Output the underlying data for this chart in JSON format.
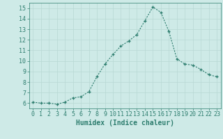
{
  "x": [
    0,
    1,
    2,
    3,
    4,
    5,
    6,
    7,
    8,
    9,
    10,
    11,
    12,
    13,
    14,
    15,
    16,
    17,
    18,
    19,
    20,
    21,
    22,
    23
  ],
  "y": [
    6.1,
    6.0,
    6.0,
    5.9,
    6.1,
    6.5,
    6.6,
    7.1,
    8.5,
    9.7,
    10.6,
    11.4,
    11.9,
    12.5,
    13.8,
    15.1,
    14.6,
    12.8,
    10.2,
    9.7,
    9.6,
    9.2,
    8.7,
    8.5
  ],
  "line_color": "#2d7d6e",
  "marker": "+",
  "marker_size": 3,
  "bg_color": "#ceeae7",
  "grid_color": "#b8d8d4",
  "tick_color": "#2d7d6e",
  "xlabel": "Humidex (Indice chaleur)",
  "xlabel_fontsize": 7,
  "xlabel_color": "#2d7d6e",
  "ylim": [
    5.5,
    15.5
  ],
  "xlim": [
    -0.5,
    23.5
  ],
  "yticks": [
    6,
    7,
    8,
    9,
    10,
    11,
    12,
    13,
    14,
    15
  ],
  "xticks": [
    0,
    1,
    2,
    3,
    4,
    5,
    6,
    7,
    8,
    9,
    10,
    11,
    12,
    13,
    14,
    15,
    16,
    17,
    18,
    19,
    20,
    21,
    22,
    23
  ],
  "tick_fontsize": 6
}
